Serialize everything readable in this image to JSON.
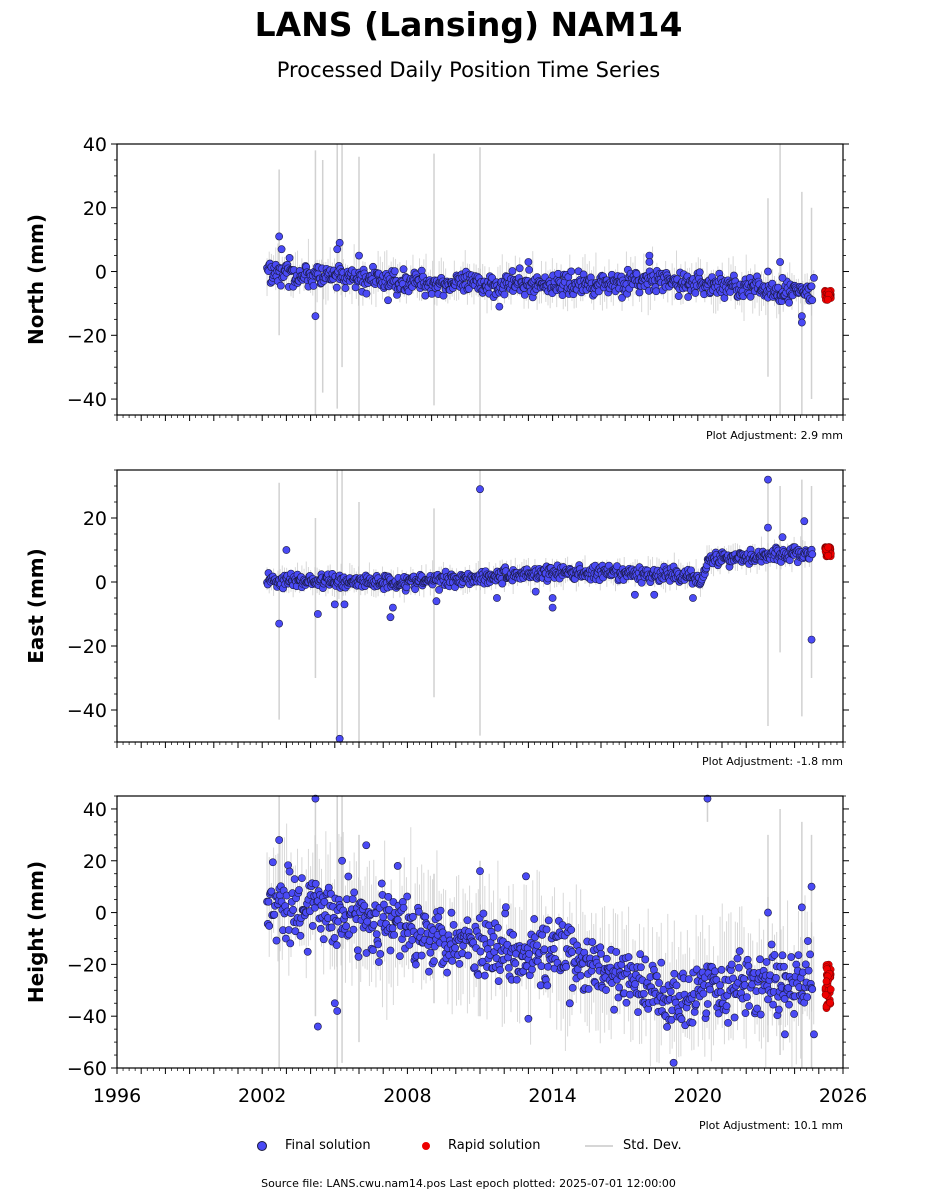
{
  "header": {
    "title": "LANS (Lansing) NAM14",
    "subtitle": "Processed Daily Position Time Series"
  },
  "chart_data": {
    "type": "scatter",
    "x_axis": {
      "range": [
        1996,
        2026
      ],
      "ticks": [
        "1996",
        "2002",
        "2008",
        "2014",
        "2020",
        "2026"
      ]
    },
    "panels": [
      {
        "ylabel": "North (mm)",
        "ylim": [
          -45,
          40
        ],
        "yticks": [
          -40,
          -20,
          0,
          20,
          40
        ],
        "adjustment_label": "Plot Adjustment: 2.9 mm",
        "trend": [
          [
            2002.2,
            0
          ],
          [
            2005,
            -2
          ],
          [
            2010,
            -4
          ],
          [
            2015,
            -4
          ],
          [
            2018,
            -3
          ],
          [
            2020.5,
            -4
          ],
          [
            2024.7,
            -7
          ]
        ],
        "scatter": 2.5,
        "outliers": [
          [
            2002.7,
            11
          ],
          [
            2002.8,
            7
          ],
          [
            2004.2,
            -14
          ],
          [
            2005.2,
            9
          ],
          [
            2005.1,
            7
          ],
          [
            2006,
            5
          ],
          [
            2013,
            3
          ],
          [
            2018,
            5
          ],
          [
            2018,
            3
          ],
          [
            2022.9,
            0
          ],
          [
            2023.4,
            3
          ],
          [
            2023.5,
            -2
          ],
          [
            2024.3,
            -14
          ],
          [
            2024.3,
            -16
          ],
          [
            2024.8,
            -2
          ],
          [
            2011.8,
            -11
          ],
          [
            2007.2,
            -9
          ],
          [
            2019.6,
            -8
          ]
        ],
        "rapid": [
          -9,
          -6
        ],
        "errors": [
          [
            2002.7,
            -20,
            32
          ],
          [
            2004.2,
            -45,
            38
          ],
          [
            2004.5,
            -38,
            35
          ],
          [
            2005.1,
            -43,
            42
          ],
          [
            2005.3,
            -30,
            40
          ],
          [
            2006,
            -45,
            36
          ],
          [
            2009.1,
            -42,
            37
          ],
          [
            2011,
            -45,
            39
          ],
          [
            2022.9,
            -33,
            23
          ],
          [
            2023.4,
            -45,
            40
          ],
          [
            2024.3,
            -45,
            25
          ],
          [
            2024.7,
            -40,
            20
          ]
        ]
      },
      {
        "ylabel": "East (mm)",
        "ylim": [
          -50,
          35
        ],
        "yticks": [
          -40,
          -20,
          0,
          20
        ],
        "adjustment_label": "Plot Adjustment: -1.8 mm",
        "trend": [
          [
            2002.2,
            0.5
          ],
          [
            2008,
            0
          ],
          [
            2011,
            1.5
          ],
          [
            2014,
            3
          ],
          [
            2017,
            2.5
          ],
          [
            2019.8,
            2
          ],
          [
            2020.1,
            0
          ],
          [
            2020.4,
            7
          ],
          [
            2022,
            8
          ],
          [
            2024.8,
            9
          ]
        ],
        "scatter": 1.6,
        "outliers": [
          [
            2002.7,
            -13
          ],
          [
            2003,
            10
          ],
          [
            2004.3,
            -10
          ],
          [
            2005,
            -7
          ],
          [
            2005.4,
            -7
          ],
          [
            2005.2,
            -49
          ],
          [
            2007.3,
            -11
          ],
          [
            2007.4,
            -8
          ],
          [
            2009.2,
            -6
          ],
          [
            2011,
            29
          ],
          [
            2011.7,
            -5
          ],
          [
            2013.3,
            -3
          ],
          [
            2014,
            -5
          ],
          [
            2014,
            -8
          ],
          [
            2017.4,
            -4
          ],
          [
            2018.2,
            -4
          ],
          [
            2022.9,
            17
          ],
          [
            2022.9,
            32
          ],
          [
            2023.5,
            14
          ],
          [
            2024.4,
            19
          ],
          [
            2024.7,
            -18
          ],
          [
            2019.8,
            -5
          ]
        ],
        "rapid": [
          8,
          11
        ],
        "errors": [
          [
            2002.7,
            -43,
            31
          ],
          [
            2004.2,
            -30,
            20
          ],
          [
            2005.1,
            -50,
            35
          ],
          [
            2005.3,
            -50,
            35
          ],
          [
            2006,
            -50,
            25
          ],
          [
            2009.1,
            -36,
            23
          ],
          [
            2011,
            -48,
            35
          ],
          [
            2022.9,
            -45,
            32
          ],
          [
            2023.4,
            -22,
            30
          ],
          [
            2024.3,
            -42,
            32
          ],
          [
            2024.7,
            -30,
            30
          ]
        ]
      },
      {
        "ylabel": "Height (mm)",
        "ylim": [
          -60,
          45
        ],
        "yticks": [
          -60,
          -40,
          -20,
          0,
          20,
          40
        ],
        "adjustment_label": "Plot Adjustment: 10.1 mm",
        "trend": [
          [
            2002.2,
            5
          ],
          [
            2005,
            0
          ],
          [
            2008,
            -6
          ],
          [
            2011,
            -12
          ],
          [
            2014,
            -16
          ],
          [
            2017,
            -26
          ],
          [
            2019,
            -33
          ],
          [
            2020.5,
            -28
          ],
          [
            2022,
            -28
          ],
          [
            2024.7,
            -27
          ]
        ],
        "scatter": 9,
        "outliers": [
          [
            2002.7,
            28
          ],
          [
            2004.2,
            44
          ],
          [
            2004.3,
            -44
          ],
          [
            2005,
            -35
          ],
          [
            2005.1,
            -38
          ],
          [
            2005.3,
            20
          ],
          [
            2006.3,
            26
          ],
          [
            2007.6,
            18
          ],
          [
            2011,
            16
          ],
          [
            2012.9,
            14
          ],
          [
            2013,
            -41
          ],
          [
            2019,
            -58
          ],
          [
            2020.4,
            44
          ],
          [
            2022.9,
            0
          ],
          [
            2023.6,
            -47
          ],
          [
            2024.3,
            2
          ],
          [
            2024.7,
            10
          ],
          [
            2024.8,
            -47
          ]
        ],
        "rapid": [
          -37,
          -20
        ],
        "errors": [
          [
            2002.7,
            -60,
            45
          ],
          [
            2004.2,
            -40,
            45
          ],
          [
            2005.1,
            -60,
            45
          ],
          [
            2005.3,
            -58,
            45
          ],
          [
            2006,
            -50,
            30
          ],
          [
            2009.1,
            -35,
            15
          ],
          [
            2011,
            -40,
            20
          ],
          [
            2020.4,
            35,
            45
          ],
          [
            2022.9,
            -50,
            30
          ],
          [
            2023.4,
            -55,
            40
          ],
          [
            2024.3,
            -60,
            35
          ],
          [
            2024.7,
            -60,
            30
          ]
        ]
      }
    ],
    "legend": [
      "Final solution",
      "Rapid solution",
      "Std. Dev."
    ],
    "colors": {
      "final": "#4a4af5",
      "rapid": "#ee0000",
      "stddev": "#c8c8c8",
      "edge": "#1a1a40"
    }
  },
  "footer": {
    "source": "Source file: LANS.cwu.nam14.pos  Last epoch plotted: 2025-07-01 12:00:00"
  }
}
